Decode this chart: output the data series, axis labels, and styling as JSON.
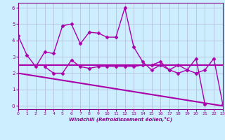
{
  "xlabel": "Windchill (Refroidissement éolien,°C)",
  "background_color": "#cceeff",
  "line_color": "#aa00aa",
  "grid_color": "#aaaacc",
  "xlim": [
    0,
    23
  ],
  "ylim": [
    -0.2,
    6.3
  ],
  "xticks": [
    0,
    1,
    2,
    3,
    4,
    5,
    6,
    7,
    8,
    9,
    10,
    11,
    12,
    13,
    14,
    15,
    16,
    17,
    18,
    19,
    20,
    21,
    22,
    23
  ],
  "yticks": [
    0,
    1,
    2,
    3,
    4,
    5,
    6
  ],
  "series": [
    {
      "x": [
        0,
        1,
        2,
        3,
        4,
        5,
        6,
        7,
        8,
        9,
        10,
        11,
        12,
        13,
        14,
        15,
        16,
        17,
        18,
        19,
        20,
        21,
        22,
        23
      ],
      "y": [
        4.3,
        3.1,
        2.4,
        3.3,
        3.2,
        4.9,
        5.0,
        3.8,
        4.5,
        4.45,
        4.2,
        4.2,
        6.0,
        3.6,
        2.7,
        2.2,
        2.5,
        2.2,
        2.0,
        2.2,
        2.9,
        0.1,
        null,
        null
      ],
      "marker": "D",
      "markersize": 2.5,
      "linewidth": 1.0
    },
    {
      "x": [
        0,
        1,
        2,
        3,
        4,
        5,
        6,
        7,
        8,
        9,
        10,
        11,
        12,
        13,
        14,
        15,
        16,
        17,
        18,
        19,
        20,
        21,
        22,
        23
      ],
      "y": [
        null,
        null,
        null,
        2.4,
        2.0,
        2.0,
        2.8,
        2.4,
        2.3,
        2.4,
        2.4,
        2.4,
        2.4,
        2.4,
        2.5,
        2.5,
        2.7,
        2.2,
        2.5,
        2.2,
        2.0,
        2.2,
        2.9,
        0.1
      ],
      "marker": "D",
      "markersize": 2.5,
      "linewidth": 1.0
    },
    {
      "x": [
        0,
        23
      ],
      "y": [
        2.5,
        2.5
      ],
      "marker": null,
      "markersize": 0,
      "linewidth": 1.5
    },
    {
      "x": [
        0,
        23
      ],
      "y": [
        2.0,
        0.0
      ],
      "marker": null,
      "markersize": 0,
      "linewidth": 1.5
    }
  ]
}
